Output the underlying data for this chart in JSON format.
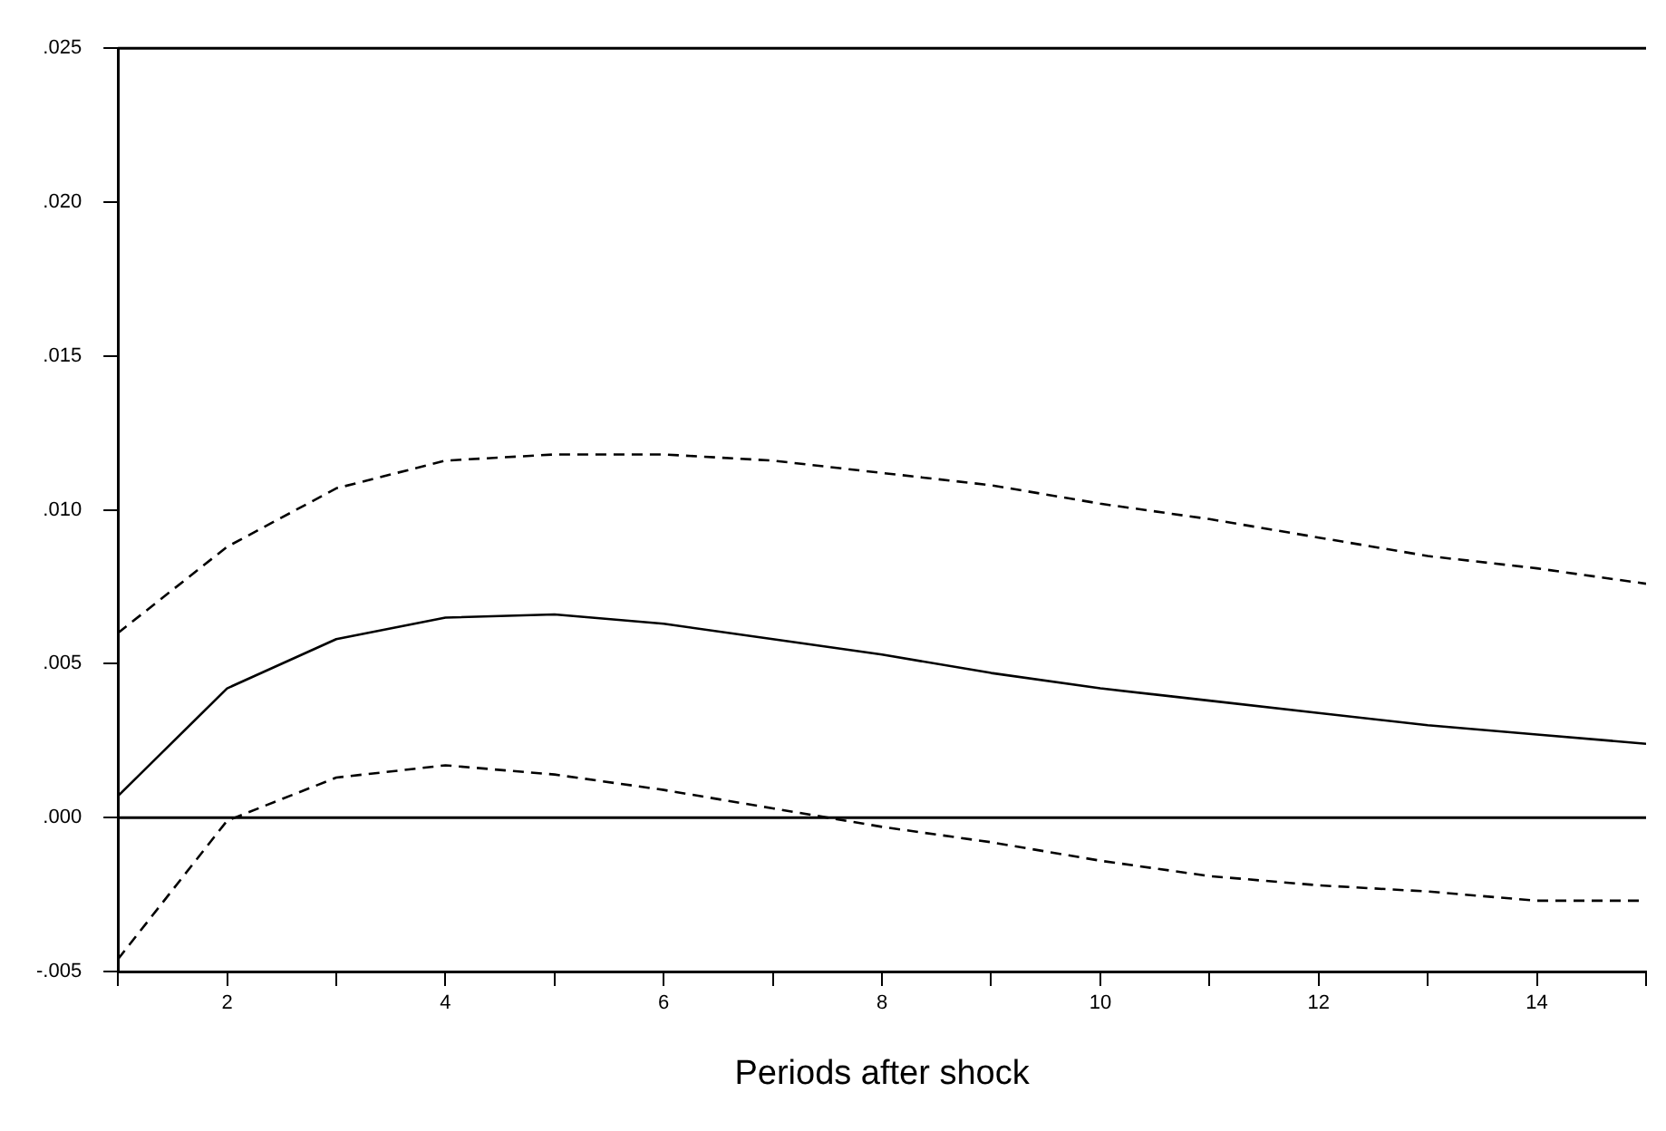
{
  "chart_data": {
    "type": "line",
    "xlabel": "Periods after shock",
    "x": [
      1,
      2,
      3,
      4,
      5,
      6,
      7,
      8,
      9,
      10,
      11,
      12,
      13,
      14,
      15
    ],
    "series": [
      {
        "color": "#000000",
        "line_style": "dashed",
        "values": [
          0.006,
          0.0088,
          0.0107,
          0.0116,
          0.0118,
          0.0118,
          0.0116,
          0.0112,
          0.0108,
          0.0102,
          0.0097,
          0.0091,
          0.0085,
          0.0081,
          0.0076
        ]
      },
      {
        "color": "#000000",
        "line_style": "solid",
        "values": [
          0.0007,
          0.0042,
          0.0058,
          0.0065,
          0.0066,
          0.0063,
          0.0058,
          0.0053,
          0.0047,
          0.0042,
          0.0038,
          0.0034,
          0.003,
          0.0027,
          0.0024
        ]
      },
      {
        "color": "#000000",
        "line_style": "dashed",
        "values": [
          -0.0046,
          -0.0001,
          0.0013,
          0.0017,
          0.0014,
          0.0009,
          0.0003,
          -0.0003,
          -0.0008,
          -0.0014,
          -0.0019,
          -0.0022,
          -0.0024,
          -0.0027,
          -0.0027
        ]
      }
    ],
    "xlim": [
      1,
      15
    ],
    "xticks": [
      {
        "value": 1,
        "label": null
      },
      2,
      {
        "value": 3,
        "label": null
      },
      4,
      {
        "value": 5,
        "label": null
      },
      6,
      {
        "value": 7,
        "label": null
      },
      8,
      {
        "value": 9,
        "label": null
      },
      10,
      {
        "value": 11,
        "label": null
      },
      12,
      {
        "value": 13,
        "label": null
      },
      14,
      {
        "value": 15,
        "label": null
      }
    ],
    "ylim": [
      -0.005,
      0.025
    ],
    "yticks": [
      {
        "value": -0.005,
        "label": "-.005"
      },
      {
        "value": 0,
        "label": ".000"
      },
      {
        "value": 0.005,
        "label": ".005"
      },
      {
        "value": 0.01,
        "label": ".010"
      },
      {
        "value": 0.015,
        "label": ".015"
      },
      {
        "value": 0.02,
        "label": ".020"
      },
      {
        "value": 0.025,
        "label": ".025"
      }
    ],
    "ref_lines": [
      {
        "axis": "y",
        "value": 0,
        "color": "#000000",
        "line_style": "solid"
      }
    ],
    "grid": false,
    "legend": false,
    "marker": "none"
  }
}
